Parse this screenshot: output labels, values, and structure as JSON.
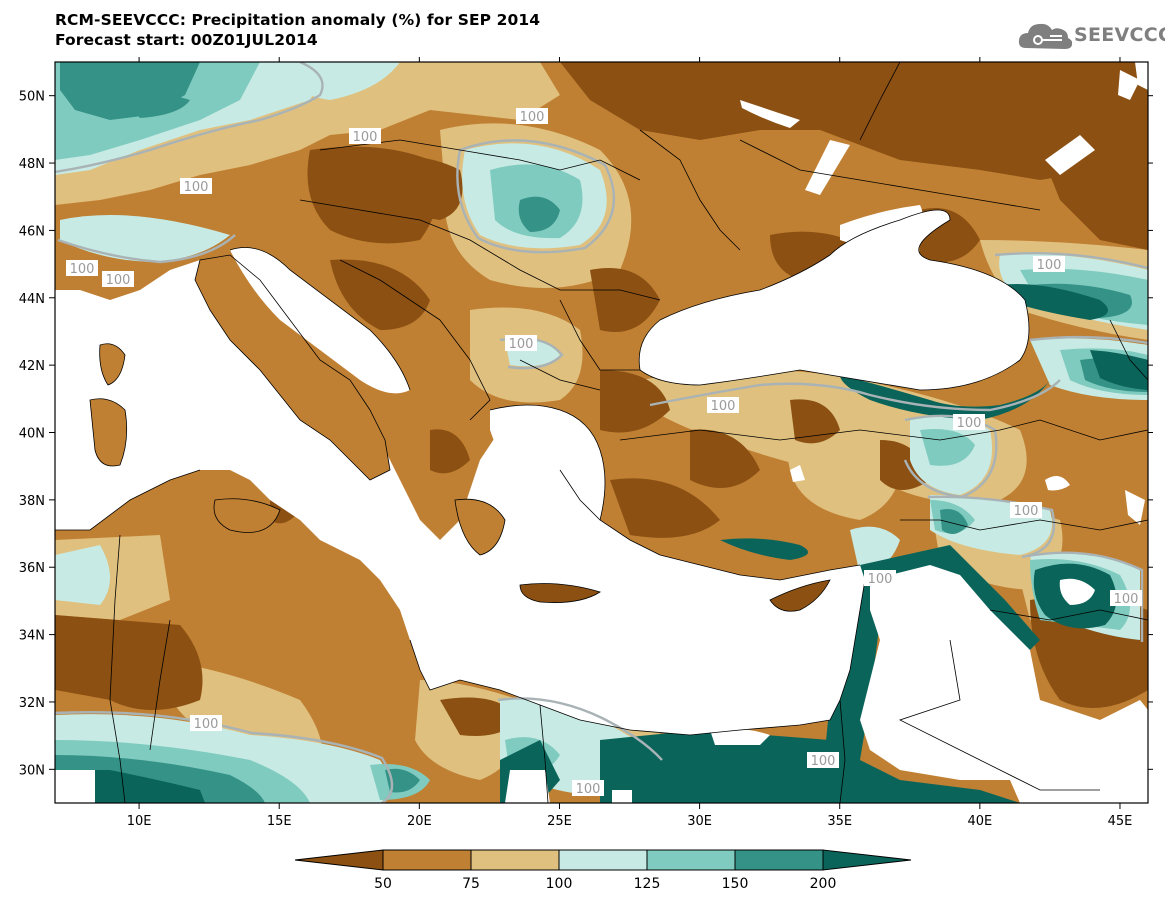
{
  "header": {
    "title": "RCM-SEEVCCC: Precipitation anomaly (%) for SEP 2014",
    "subtitle": "Forecast start: 00Z01JUL2014",
    "logo_text": "SEEVCCC",
    "logo_icon": "cloud-icon"
  },
  "map": {
    "lon_labels": [
      "10E",
      "15E",
      "20E",
      "25E",
      "30E",
      "35E",
      "40E",
      "45E"
    ],
    "lat_labels": [
      "30N",
      "32N",
      "34N",
      "36N",
      "38N",
      "40N",
      "42N",
      "44N",
      "46N",
      "48N",
      "50N"
    ],
    "contour_label": "100",
    "lon_range": [
      7,
      46
    ],
    "lat_range": [
      29,
      51
    ]
  },
  "colorbar": {
    "ticks": [
      "50",
      "75",
      "100",
      "125",
      "150",
      "200"
    ],
    "colors": {
      "lt50": "#8b5012",
      "c50_75": "#c08033",
      "c75_100": "#dfc07f",
      "c100_125": "#c7ebe4",
      "c125_150": "#80cbbf",
      "c150_200": "#359287",
      "gt200": "#0b645a"
    }
  }
}
